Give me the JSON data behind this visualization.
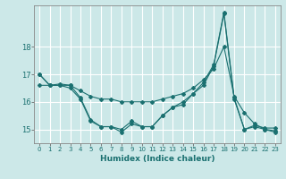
{
  "title": "",
  "xlabel": "Humidex (Indice chaleur)",
  "background_color": "#cce8e8",
  "grid_color": "#ffffff",
  "line_color": "#1a7070",
  "xlim": [
    -0.5,
    23.5
  ],
  "ylim": [
    14.5,
    19.5
  ],
  "yticks": [
    15,
    16,
    17,
    18
  ],
  "xticks": [
    0,
    1,
    2,
    3,
    4,
    5,
    6,
    7,
    8,
    9,
    10,
    11,
    12,
    13,
    14,
    15,
    16,
    17,
    18,
    19,
    20,
    21,
    22,
    23
  ],
  "lines": [
    {
      "y": [
        17.0,
        16.6,
        16.6,
        16.5,
        16.1,
        15.3,
        15.1,
        15.1,
        14.9,
        15.2,
        15.1,
        15.1,
        15.5,
        15.8,
        15.9,
        16.3,
        16.6,
        17.3,
        19.2,
        16.1,
        15.0,
        15.1,
        15.0,
        14.9
      ]
    },
    {
      "y": [
        16.6,
        16.6,
        16.6,
        16.6,
        16.4,
        16.2,
        16.1,
        16.1,
        16.0,
        16.0,
        16.0,
        16.0,
        16.1,
        16.2,
        16.3,
        16.5,
        16.8,
        17.2,
        18.0,
        16.2,
        15.6,
        15.2,
        15.0,
        14.95
      ]
    },
    {
      "y": [
        17.0,
        16.6,
        16.65,
        16.6,
        16.15,
        15.35,
        15.1,
        15.1,
        15.0,
        15.3,
        15.1,
        15.1,
        15.5,
        15.8,
        16.0,
        16.3,
        16.7,
        17.35,
        19.25,
        16.15,
        15.0,
        15.15,
        15.05,
        15.05
      ]
    }
  ],
  "xlabel_fontsize": 6.5,
  "xlabel_color": "#1a7070",
  "ytick_fontsize": 6,
  "xtick_fontsize": 5
}
